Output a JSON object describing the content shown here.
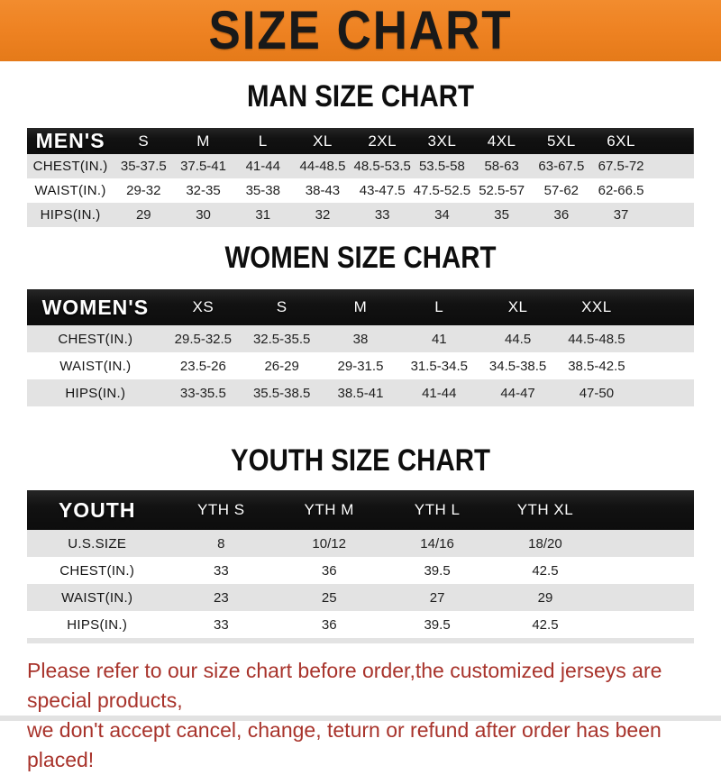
{
  "banner": {
    "title": "SIZE CHART"
  },
  "colors": {
    "banner_orange": "#ee8222",
    "header_black": "#141414",
    "row_gray": "#e3e3e3",
    "footer_red": "#a8332b"
  },
  "chart_data": [
    {
      "type": "table",
      "title": "MAN SIZE CHART",
      "corner_label": "MEN'S",
      "columns": [
        "S",
        "M",
        "L",
        "XL",
        "2XL",
        "3XL",
        "4XL",
        "5XL",
        "6XL"
      ],
      "rows": [
        {
          "label": "CHEST(IN.)",
          "values": [
            "35-37.5",
            "37.5-41",
            "41-44",
            "44-48.5",
            "48.5-53.5",
            "53.5-58",
            "58-63",
            "63-67.5",
            "67.5-72"
          ]
        },
        {
          "label": "WAIST(IN.)",
          "values": [
            "29-32",
            "32-35",
            "35-38",
            "38-43",
            "43-47.5",
            "47.5-52.5",
            "52.5-57",
            "57-62",
            "62-66.5"
          ]
        },
        {
          "label": "HIPS(IN.)",
          "values": [
            "29",
            "30",
            "31",
            "32",
            "33",
            "34",
            "35",
            "36",
            "37"
          ]
        }
      ]
    },
    {
      "type": "table",
      "title": "WOMEN SIZE CHART",
      "corner_label": "WOMEN'S",
      "columns": [
        "XS",
        "S",
        "M",
        "L",
        "XL",
        "XXL"
      ],
      "rows": [
        {
          "label": "CHEST(IN.)",
          "values": [
            "29.5-32.5",
            "32.5-35.5",
            "38",
            "41",
            "44.5",
            "44.5-48.5"
          ]
        },
        {
          "label": "WAIST(IN.)",
          "values": [
            "23.5-26",
            "26-29",
            "29-31.5",
            "31.5-34.5",
            "34.5-38.5",
            "38.5-42.5"
          ]
        },
        {
          "label": "HIPS(IN.)",
          "values": [
            "33-35.5",
            "35.5-38.5",
            "38.5-41",
            "41-44",
            "44-47",
            "47-50"
          ]
        }
      ]
    },
    {
      "type": "table",
      "title": "YOUTH SIZE CHART",
      "corner_label": "YOUTH",
      "columns": [
        "YTH S",
        "YTH M",
        "YTH L",
        "YTH XL"
      ],
      "rows": [
        {
          "label": "U.S.SIZE",
          "values": [
            "8",
            "10/12",
            "14/16",
            "18/20"
          ]
        },
        {
          "label": "CHEST(IN.)",
          "values": [
            "33",
            "36",
            "39.5",
            "42.5"
          ]
        },
        {
          "label": "WAIST(IN.)",
          "values": [
            "23",
            "25",
            "27",
            "29"
          ]
        },
        {
          "label": "HIPS(IN.)",
          "values": [
            "33",
            "36",
            "39.5",
            "42.5"
          ]
        }
      ]
    }
  ],
  "footer": {
    "line1": "Please refer to our size chart before order,the customized jerseys are special products,",
    "line2": "we don't accept cancel, change, teturn or refund after order has been placed!"
  }
}
